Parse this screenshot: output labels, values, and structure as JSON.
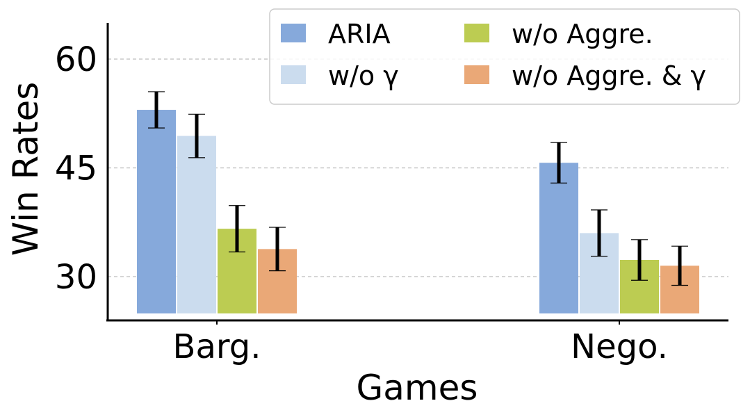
{
  "chart_data": {
    "type": "bar",
    "xlabel": "Games",
    "ylabel": "Win Rates",
    "categories": [
      "Barg.",
      "Nego."
    ],
    "ylim": [
      25,
      66
    ],
    "yticks": [
      30,
      45,
      60
    ],
    "ytick_labels": [
      "30",
      "45",
      "60"
    ],
    "grid": true,
    "legend_position": "top-right",
    "series": [
      {
        "name": "ARIA",
        "color": "#86a9db",
        "values": [
          53.0,
          45.7
        ],
        "errors": [
          2.5,
          2.8
        ]
      },
      {
        "name": "w/o γ",
        "color": "#cbdcee",
        "values": [
          49.4,
          36.0
        ],
        "errors": [
          3.0,
          3.2
        ]
      },
      {
        "name": "w/o Aggre.",
        "color": "#bccc52",
        "values": [
          36.6,
          32.3
        ],
        "errors": [
          3.2,
          2.8
        ]
      },
      {
        "name": "w/o Aggre. & γ",
        "color": "#eaa877",
        "values": [
          33.8,
          31.5
        ],
        "errors": [
          3.0,
          2.7
        ]
      }
    ]
  }
}
